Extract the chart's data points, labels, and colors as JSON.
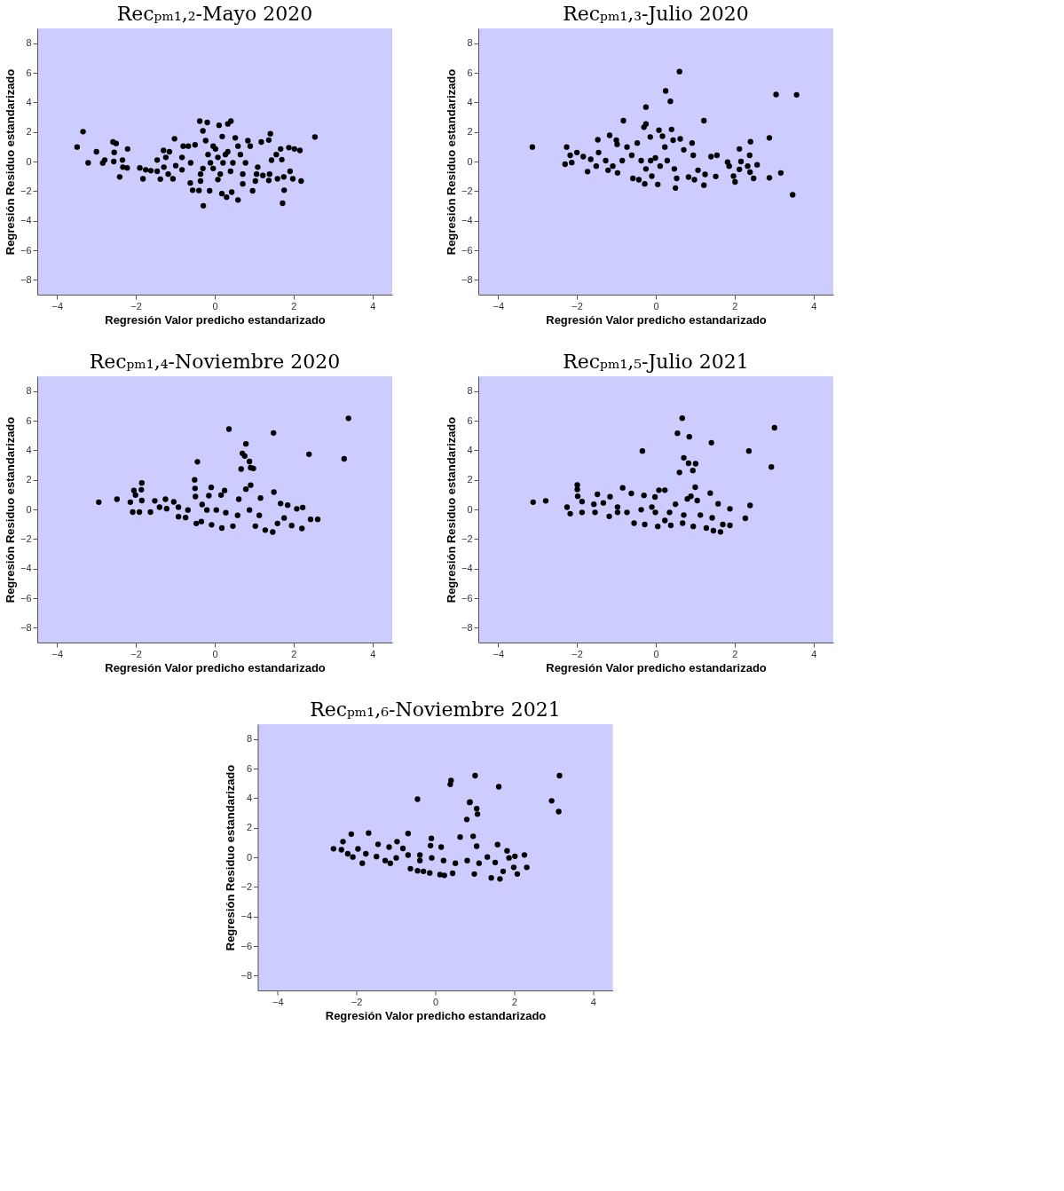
{
  "chart_data": [
    {
      "type": "scatter",
      "title": "Recₚₘ₁,₂-Mayo 2020",
      "xlabel": "Regresión Valor predicho estandarizado",
      "ylabel": "Regresión Residuo estandarizado",
      "color": "#000000",
      "marker": "circle",
      "xlim": [
        -4.5,
        4.5
      ],
      "ylim": [
        -9,
        9
      ],
      "xticks": [
        -4,
        -2,
        0,
        2,
        4
      ],
      "yticks": [
        -8,
        -6,
        -4,
        -2,
        0,
        2,
        4,
        6,
        8
      ],
      "x": [
        -3.49,
        -3.34,
        -3.21,
        -3.0,
        -2.84,
        -2.79,
        -2.58,
        -2.5,
        -2.55,
        -2.56,
        -2.41,
        -2.34,
        -2.33,
        -2.21,
        -2.22,
        -1.9,
        -1.75,
        -1.62,
        -1.82,
        -1.46,
        -1.46,
        -1.38,
        -1.3,
        -1.15,
        -1.24,
        -1.29,
        -1.18,
        -1.06,
        -1.02,
        -0.99,
        -0.83,
        -0.83,
        -0.67,
        -0.62,
        -0.56,
        -0.5,
        -0.4,
        -0.38,
        -0.3,
        -0.19,
        -0.29,
        -0.36,
        -0.23,
        -0.13,
        -0.04,
        -0.04,
        0.11,
        0.14,
        0.18,
        0.19,
        0.3,
        0.33,
        0.41,
        0.43,
        0.33,
        0.08,
        0.21,
        0.46,
        0.52,
        0.59,
        0.65,
        0.71,
        0.84,
        0.9,
        0.78,
        0.96,
        1.03,
        1.06,
        1.09,
        1.18,
        1.22,
        1.37,
        1.41,
        1.39,
        1.37,
        1.44,
        1.56,
        1.59,
        1.67,
        1.7,
        1.75,
        1.76,
        1.72,
        1.88,
        1.91,
        1.98,
        2.02,
        2.16,
        2.19,
        2.54,
        -0.17,
        0.02,
        -0.11,
        0.27,
        0.4,
        0.59,
        0.71,
        -0.3,
        -0.61,
        -0.8,
        0.08,
        -0.36
      ],
      "values": [
        0.98,
        2.02,
        -0.09,
        0.66,
        -0.1,
        0.1,
        1.32,
        1.22,
        0.62,
        0,
        -1.04,
        0.1,
        -0.38,
        0.85,
        -0.43,
        -0.43,
        -0.56,
        -0.62,
        -1.17,
        0.1,
        -0.66,
        -1.19,
        0.75,
        0.66,
        0.28,
        -0.38,
        -0.85,
        -1.17,
        1.54,
        -0.28,
        0.28,
        -0.56,
        1.04,
        -1.45,
        -1.94,
        1.13,
        -1.96,
        2.73,
        2.07,
        2.64,
        -2.99,
        -1.32,
        1.41,
        -1.98,
        1.04,
        -0.47,
        2.45,
        -0.85,
        -2.17,
        1.69,
        -2.41,
        2.54,
        2.73,
        -2.07,
        0.66,
        0.28,
        -0.09,
        -0.09,
        1.6,
        -2.6,
        0.47,
        -1.51,
        1.41,
        1.04,
        -0.09,
        -1.98,
        -1.32,
        -0.85,
        -0.38,
        1.32,
        -0.94,
        1.45,
        1.88,
        -0.85,
        -1.28,
        0.09,
        0.47,
        -1.17,
        0.85,
        0.13,
        -1.04,
        -1.94,
        -2.82,
        0.94,
        -0.66,
        -1.17,
        0.85,
        0.75,
        -1.32,
        1.66,
        0.47,
        0.85,
        -0.09,
        0.47,
        -0.66,
        1.04,
        -0.85,
        -0.47,
        -0.09,
        1.04,
        -1.22,
        -0.85
      ]
    },
    {
      "type": "scatter",
      "title": "Recₚₘ₁,₃-Julio 2020",
      "xlabel": "Regresión Valor predicho estandarizado",
      "ylabel": "Regresión Residuo estandarizado",
      "color": "#000000",
      "marker": "circle",
      "xlim": [
        -4.5,
        4.5
      ],
      "ylim": [
        -9,
        9
      ],
      "xticks": [
        -4,
        -2,
        0,
        2,
        4
      ],
      "yticks": [
        -8,
        -6,
        -4,
        -2,
        0,
        2,
        4,
        6,
        8
      ],
      "x": [
        -3.13,
        -2.26,
        -2.3,
        -2.17,
        -2.13,
        -2.0,
        -1.84,
        -1.73,
        -1.65,
        -1.51,
        -1.47,
        -1.45,
        -1.27,
        -1.17,
        -1.21,
        -1.0,
        -0.98,
        -0.97,
        -0.82,
        -0.73,
        -0.61,
        -0.58,
        -0.43,
        -0.47,
        -0.28,
        -0.3,
        -0.25,
        -0.25,
        -0.14,
        -0.13,
        -0.1,
        0.05,
        0.08,
        0.17,
        0.23,
        0.25,
        0.37,
        0.4,
        0.44,
        0.6,
        0.5,
        0.53,
        0.62,
        0.71,
        0.83,
        0.92,
        0.95,
        0.98,
        1.07,
        1.22,
        1.22,
        1.25,
        1.4,
        1.52,
        1.55,
        1.82,
        1.86,
        1.97,
        2.01,
        2.12,
        2.12,
        2.16,
        2.33,
        2.38,
        2.39,
        2.4,
        2.48,
        2.57,
        2.88,
        2.88,
        3.05,
        3.17,
        3.47,
        3.57,
        -0.37,
        -0.01,
        0.11,
        -0.25,
        0.29,
        0.47,
        -0.85,
        -1.09
      ],
      "values": [
        0.98,
        0.98,
        -0.18,
        0.42,
        -0.07,
        0.61,
        0.33,
        -0.68,
        0.15,
        -0.31,
        1.47,
        0.61,
        0.06,
        1.77,
        -0.59,
        1.44,
        1.16,
        -0.77,
        2.76,
        0.98,
        0.42,
        -1.14,
        -1.23,
        1.25,
        -1.51,
        2.32,
        2.54,
        3.68,
        1.66,
        0.06,
        -0.99,
        -1.55,
        2.12,
        1.71,
        0.98,
        4.77,
        4.07,
        2.17,
        1.44,
        6.08,
        -1.79,
        -1.14,
        1.53,
        0.79,
        -1.05,
        1.25,
        0.42,
        -1.23,
        -0.59,
        2.76,
        -1.6,
        -0.87,
        0.33,
        -1.01,
        0.42,
        -0.04,
        -0.31,
        -0.99,
        -1.38,
        0.85,
        -0.53,
        0,
        -0.31,
        0.42,
        -0.72,
        1.34,
        -1.14,
        -0.22,
        1.6,
        -1.1,
        4.53,
        -0.77,
        -2.25,
        4.51,
        0.06,
        0.24,
        -0.31,
        -0.5,
        0.06,
        -0.5,
        0.06,
        -0.31
      ]
    },
    {
      "type": "scatter",
      "title": "Recₚₘ₁,₄-Noviembre 2020",
      "xlabel": "Regresión Valor predicho estandarizado",
      "ylabel": "Regresión Residuo estandarizado",
      "color": "#000000",
      "marker": "circle",
      "xlim": [
        -4.5,
        4.5
      ],
      "ylim": [
        -9,
        9
      ],
      "xticks": [
        -4,
        -2,
        0,
        2,
        4
      ],
      "yticks": [
        -8,
        -6,
        -4,
        -2,
        0,
        2,
        4,
        6,
        8
      ],
      "x": [
        -2.94,
        -2.48,
        -2.14,
        -2.08,
        -2.05,
        -2.01,
        -1.85,
        -1.86,
        -1.91,
        -1.85,
        -1.63,
        -1.52,
        -1.4,
        -1.25,
        -1.04,
        -0.92,
        -0.74,
        -0.51,
        -0.5,
        -0.49,
        -0.47,
        -0.44,
        -0.34,
        -0.32,
        -0.15,
        -0.09,
        -0.08,
        0.04,
        0.16,
        0.18,
        0.25,
        0.36,
        0.46,
        0.61,
        0.67,
        0.7,
        0.76,
        0.79,
        0.79,
        0.88,
        0.91,
        0.91,
        0.98,
        1.03,
        1.16,
        1.28,
        1.47,
        1.49,
        1.5,
        1.59,
        1.67,
        1.76,
        1.85,
        1.95,
        2.08,
        2.21,
        2.23,
        2.39,
        2.43,
        2.61,
        3.28,
        3.39,
        -0.92,
        -0.68,
        -0.2,
        0.28,
        0.58,
        0.88,
        1.13,
        -1.22
      ],
      "values": [
        0.49,
        0.69,
        0.49,
        -0.18,
        1.28,
        0.97,
        1.79,
        1.33,
        -0.18,
        0.6,
        -0.18,
        0.58,
        0.15,
        0.69,
        0.51,
        -0.49,
        -0.55,
        2.0,
        1.42,
        0.87,
        -0.95,
        3.22,
        -0.82,
        0.33,
        0.93,
        1.49,
        -1.04,
        -0.04,
        0.97,
        -1.26,
        1.28,
        5.43,
        -1.13,
        0.69,
        2.73,
        3.79,
        3.61,
        4.43,
        1.37,
        3.24,
        1.64,
        2.82,
        2.77,
        -1.13,
        0.77,
        -1.4,
        -1.53,
        5.17,
        1.17,
        -0.95,
        0.4,
        -0.58,
        0.29,
        -1.09,
        0.04,
        -1.29,
        0.13,
        3.73,
        -0.67,
        -0.67,
        3.42,
        6.16,
        0.15,
        -0.04,
        -0.04,
        -0.22,
        -0.4,
        -0.04,
        -0.4,
        0.05
      ]
    },
    {
      "type": "scatter",
      "title": "Recₚₘ₁,₅-Julio 2021",
      "xlabel": "Regresión Valor predicho estandarizado",
      "ylabel": "Regresión Residuo estandarizado",
      "color": "#000000",
      "marker": "circle",
      "xlim": [
        -4.5,
        4.5
      ],
      "ylim": [
        -9,
        9
      ],
      "xticks": [
        -4,
        -2,
        0,
        2,
        4
      ],
      "yticks": [
        -8,
        -6,
        -4,
        -2,
        0,
        2,
        4,
        6,
        8
      ],
      "x": [
        -3.11,
        -2.79,
        -2.25,
        -2.17,
        -1.99,
        -1.99,
        -1.98,
        -1.87,
        -1.87,
        -1.54,
        -1.48,
        -1.33,
        -1.18,
        -1.16,
        -0.97,
        -0.84,
        -0.73,
        -0.62,
        -0.55,
        -0.34,
        -0.3,
        -0.28,
        -0.1,
        -0.02,
        0.05,
        0.08,
        0.23,
        0.23,
        0.38,
        0.5,
        0.55,
        0.6,
        0.67,
        0.68,
        0.71,
        0.8,
        0.83,
        0.85,
        0.89,
        0.94,
        0.95,
        1.0,
        1.01,
        1.05,
        1.28,
        1.38,
        1.41,
        1.46,
        1.58,
        1.64,
        1.7,
        1.88,
        1.88,
        2.27,
        2.36,
        2.39,
        2.93,
        3.01,
        -0.37,
        -0.01,
        0.35,
        0.71,
        1.13,
        1.43,
        -0.97,
        -1.57
      ],
      "values": [
        0.49,
        0.58,
        0.15,
        -0.29,
        1.66,
        1.35,
        0.89,
        0.53,
        -0.2,
        -0.2,
        1.02,
        0.44,
        -0.47,
        0.86,
        0.16,
        1.46,
        -0.2,
        1.08,
        -0.93,
        3.95,
        0.95,
        -1.02,
        0.16,
        0.84,
        -1.15,
        1.3,
        1.3,
        -0.75,
        -1.08,
        0.35,
        5.15,
        2.5,
        6.17,
        -0.93,
        3.49,
        0.71,
        3.12,
        4.91,
        0.89,
        2.63,
        -1.15,
        1.5,
        3.09,
        0.6,
        -1.26,
        1.1,
        4.51,
        -1.44,
        0.38,
        -1.52,
        -1.02,
        0.04,
        -1.08,
        -0.6,
        3.95,
        0.27,
        2.87,
        5.52,
        -0.02,
        -0.2,
        -0.2,
        -0.38,
        -0.38,
        -0.57,
        -0.2,
        0.35
      ]
    },
    {
      "type": "scatter",
      "title": "Recₚₘ₁,₆-Noviembre 2021",
      "xlabel": "Regresión Valor predicho estandarizado",
      "ylabel": "Regresión Residuo estandarizado",
      "color": "#000000",
      "marker": "circle",
      "xlim": [
        -4.5,
        4.5
      ],
      "ylim": [
        -9,
        9
      ],
      "xticks": [
        -4,
        -2,
        0,
        2,
        4
      ],
      "yticks": [
        -8,
        -6,
        -4,
        -2,
        0,
        2,
        4,
        6,
        8
      ],
      "x": [
        -2.58,
        -2.38,
        -2.34,
        -2.22,
        -2.13,
        -2.09,
        -1.96,
        -1.85,
        -1.76,
        -1.69,
        -1.49,
        -1.45,
        -1.27,
        -1.17,
        -1.14,
        -0.97,
        -0.82,
        -0.69,
        -0.63,
        -0.45,
        -0.45,
        -0.39,
        -0.3,
        -0.14,
        -0.1,
        -0.12,
        0.15,
        0.12,
        0.23,
        0.38,
        0.4,
        0.44,
        0.63,
        0.8,
        0.87,
        0.88,
        0.96,
        0.99,
        1.01,
        1.05,
        1.07,
        1.05,
        1.32,
        1.42,
        1.52,
        1.58,
        1.61,
        1.64,
        1.72,
        1.82,
        1.87,
        1.99,
        2.02,
        2.08,
        2.26,
        2.32,
        2.95,
        3.13,
        3.15,
        -0.69,
        -0.39,
        -0.09,
        0.21,
        0.51,
        0.81,
        1.11,
        -0.99
      ],
      "values": [
        0.58,
        0.51,
        1.06,
        0.24,
        1.57,
        0.02,
        0.57,
        -0.4,
        0.24,
        1.64,
        0.05,
        0.88,
        -0.22,
        0.69,
        -0.4,
        1.06,
        0.6,
        1.61,
        -0.77,
        3.93,
        -0.91,
        0.15,
        -0.95,
        -1.06,
        1.28,
        0.79,
        0.69,
        -1.17,
        -1.22,
        4.93,
        5.19,
        -1.08,
        1.37,
        2.56,
        3.71,
        3.74,
        1.42,
        -1.13,
        5.52,
        3.29,
        2.92,
        0.75,
        0.02,
        -1.39,
        -0.35,
        0.86,
        4.77,
        -1.46,
        -0.95,
        0.44,
        -0.04,
        -0.68,
        0.07,
        -1.13,
        0.16,
        -0.68,
        3.82,
        3.09,
        5.52,
        0.15,
        -0.22,
        -0.04,
        -0.22,
        -0.4,
        -0.22,
        -0.4,
        -0.04
      ]
    }
  ]
}
